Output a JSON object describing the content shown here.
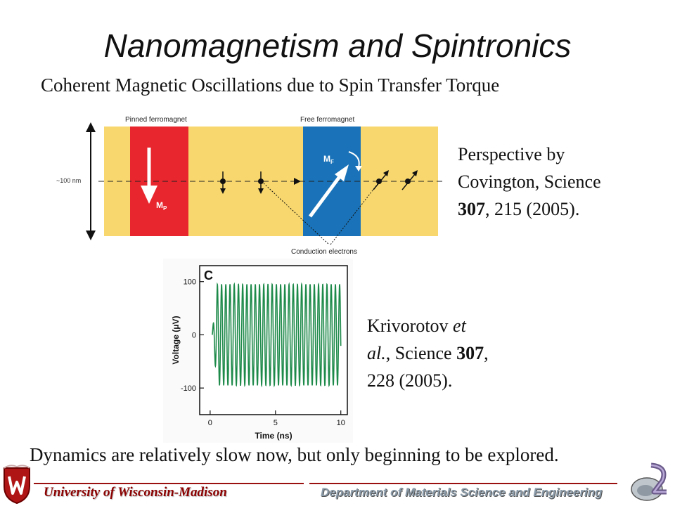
{
  "slide": {
    "title": "Nanomagnetism and Spintronics",
    "subtitle": "Coherent Magnetic Oscillations due to Spin Transfer Torque",
    "bottom_text": "Dynamics are relatively slow now, but only beginning to be explored."
  },
  "diagram": {
    "pinned_label": "Pinned ferromagnet",
    "free_label": "Free ferromagnet",
    "height_label": "~100 nm",
    "mp_label": "M",
    "mp_sub": "P",
    "mf_label": "M",
    "mf_sub": "F",
    "conduction_label": "Conduction electrons",
    "colors": {
      "background": "#f8d86e",
      "pinned": "#e8262d",
      "free": "#1a73b8"
    }
  },
  "citation1": {
    "line1": "Perspective by",
    "line2": "Covington, Science",
    "volume": "307",
    "line3_rest": ", 215 (2005)."
  },
  "citation2": {
    "line1_a": "Krivorotov ",
    "line1_b": "et",
    "line2_a": "al.",
    "line2_b": ", Science ",
    "volume": "307",
    "line2_c": ",",
    "line3": "228 (2005)."
  },
  "chart_data": {
    "type": "line",
    "panel_label": "C",
    "xlabel": "Time (ns)",
    "ylabel": "Voltage (μV)",
    "xlim": [
      -0.8,
      10.5
    ],
    "ylim": [
      -150,
      130
    ],
    "xticks": [
      0,
      5,
      10
    ],
    "yticks": [
      100,
      0,
      -100
    ],
    "xtick_labels": [
      "0",
      "5",
      "10"
    ],
    "ytick_labels": [
      "100",
      "0",
      "-100"
    ],
    "signal": {
      "start": 0.15,
      "end": 10.0,
      "amplitude": 95,
      "frequency_per_ns": 3.1,
      "ramp_ns": 0.4
    },
    "line_color": "#1e8a4a"
  },
  "footer": {
    "university": "University of Wisconsin-Madison",
    "department": "Department of Materials Science and Engineering",
    "accent": "#8b0000"
  }
}
